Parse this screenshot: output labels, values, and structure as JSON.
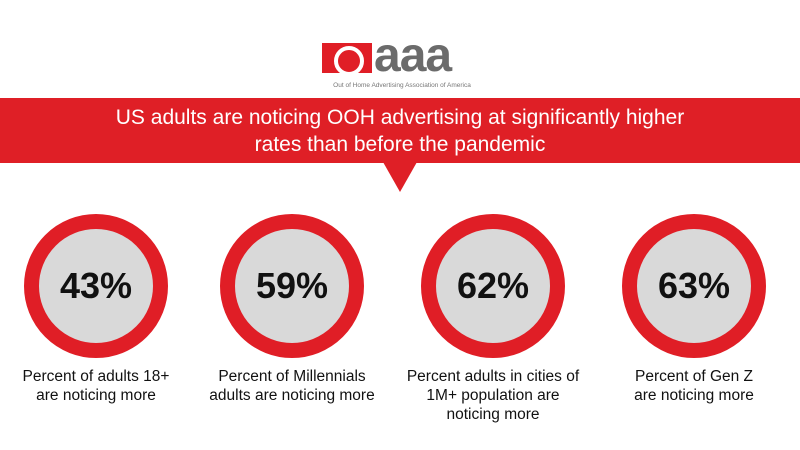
{
  "logo": {
    "text": "aaa",
    "tagline": "Out of Home Advertising Association of America"
  },
  "banner": {
    "line1": "US adults are noticing OOH advertising at significantly higher",
    "line2": "rates than before the pandemic"
  },
  "colors": {
    "accent": "#e01e26",
    "circle_fill": "#d9d9d9"
  },
  "stats": [
    {
      "value": "43%",
      "caption": "Percent of adults 18+ are noticing more"
    },
    {
      "value": "59%",
      "caption": "Percent of Millennials adults are noticing more"
    },
    {
      "value": "62%",
      "caption": "Percent adults in cities of 1M+ population are noticing more"
    },
    {
      "value": "63%",
      "caption": "Percent of Gen Z are noticing more"
    }
  ]
}
